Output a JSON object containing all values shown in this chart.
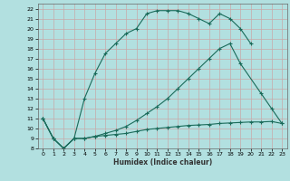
{
  "xlabel": "Humidex (Indice chaleur)",
  "bg_color": "#b2e0e0",
  "grid_color": "#c8a8a8",
  "line_color": "#1a6b5a",
  "xlim": [
    -0.5,
    23.5
  ],
  "ylim": [
    8,
    22.5
  ],
  "xticks": [
    0,
    1,
    2,
    3,
    4,
    5,
    6,
    7,
    8,
    9,
    10,
    11,
    12,
    13,
    14,
    15,
    16,
    17,
    18,
    19,
    20,
    21,
    22,
    23
  ],
  "yticks": [
    8,
    9,
    10,
    11,
    12,
    13,
    14,
    15,
    16,
    17,
    18,
    19,
    20,
    21,
    22
  ],
  "line1_x": [
    0,
    1,
    2,
    3,
    4,
    5,
    6,
    7,
    8,
    9,
    10,
    11,
    12,
    13,
    14,
    15,
    16,
    17,
    18,
    19,
    20
  ],
  "line1_y": [
    11,
    9,
    8,
    9,
    13,
    15.5,
    17.5,
    18.5,
    19.5,
    20,
    21.5,
    21.8,
    21.8,
    21.8,
    21.5,
    21,
    20.5,
    21.5,
    21,
    20,
    18.5
  ],
  "line2_x": [
    0,
    1,
    2,
    3,
    4,
    5,
    6,
    7,
    8,
    9,
    10,
    11,
    12,
    13,
    14,
    15,
    16,
    17,
    18,
    19,
    21,
    22,
    23
  ],
  "line2_y": [
    11,
    9,
    8,
    9,
    9,
    9.2,
    9.5,
    9.8,
    10.2,
    10.8,
    11.5,
    12.2,
    13,
    14,
    15,
    16,
    17,
    18,
    18.5,
    16.5,
    13.5,
    12,
    10.5
  ],
  "line3_x": [
    0,
    1,
    2,
    3,
    4,
    5,
    6,
    7,
    8,
    9,
    10,
    11,
    12,
    13,
    14,
    15,
    16,
    17,
    18,
    19,
    20,
    21,
    22,
    23
  ],
  "line3_y": [
    11,
    9,
    8,
    9,
    9,
    9.2,
    9.3,
    9.4,
    9.5,
    9.7,
    9.9,
    10.0,
    10.1,
    10.2,
    10.3,
    10.35,
    10.4,
    10.5,
    10.55,
    10.6,
    10.65,
    10.65,
    10.7,
    10.5
  ]
}
